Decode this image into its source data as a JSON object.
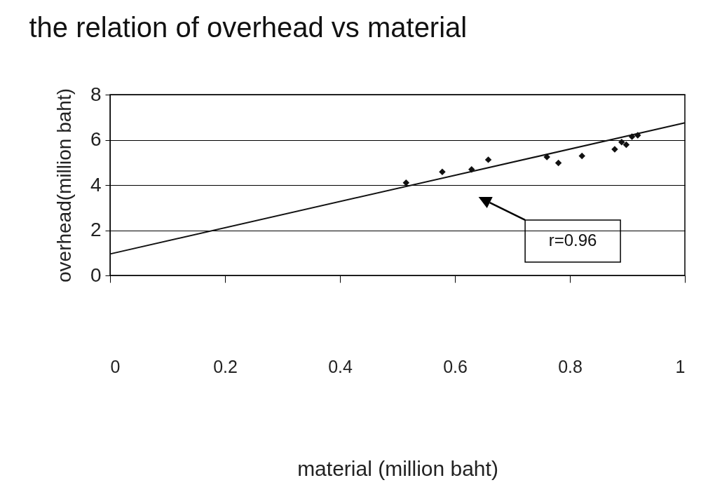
{
  "chart_data": {
    "type": "scatter",
    "title": "the relation of overhead  vs material",
    "xlabel": "material (million baht)",
    "ylabel": "overhead(million baht)",
    "xlim": [
      0,
      1
    ],
    "xticks": [
      0,
      0.2,
      0.4,
      0.6,
      0.8,
      1
    ],
    "ylim": [
      0,
      8
    ],
    "yticks": [
      0,
      2,
      4,
      6,
      8
    ],
    "grid": "y",
    "marker": "diamond",
    "series": [
      {
        "color": "#111111",
        "x": [
          0.515,
          0.578,
          0.629,
          0.658,
          0.76,
          0.78,
          0.821,
          0.878,
          0.89,
          0.898,
          0.908,
          0.918
        ],
        "values": [
          4.1,
          4.58,
          4.69,
          5.12,
          5.24,
          4.98,
          5.29,
          5.58,
          5.9,
          5.78,
          6.14,
          6.2
        ]
      },
      {
        "type": "line",
        "marker": "none",
        "color": "#111111",
        "x": [
          0,
          1
        ],
        "values": [
          0.95,
          6.75
        ]
      }
    ],
    "annotations": [
      "r=0.96"
    ]
  }
}
